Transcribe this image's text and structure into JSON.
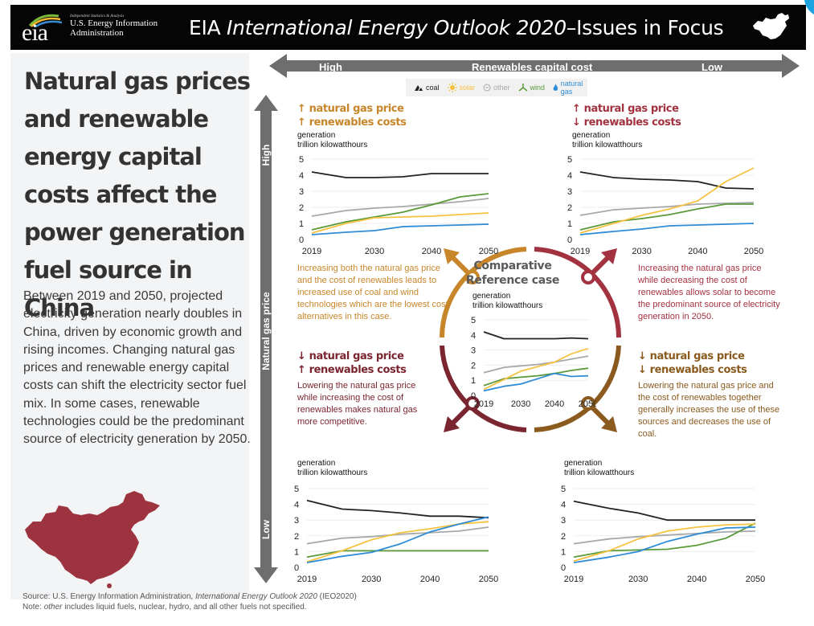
{
  "header": {
    "agency_tagline": "Independent Statistics & Analysis",
    "agency_name_line1": "U.S. Energy Information",
    "agency_name_line2": "Administration",
    "logo_text": "eia",
    "title_prefix": "EIA ",
    "title_italic": "International Energy Outlook 2020",
    "title_suffix": "–Issues in Focus"
  },
  "left_panel": {
    "headline": "Natural gas prices and renewable energy capital costs affect the power generation fuel source in China",
    "body": "Between 2019 and 2050, projected electricity generation nearly doubles in China, driven by economic growth and rising incomes. Changing natural gas prices and renewable energy capital costs can shift the electricity sector fuel mix. In some cases, renewable technologies could be the predominant source of electricity generation by 2050."
  },
  "axes": {
    "horizontal": {
      "title": "Renewables capital cost",
      "left": "High",
      "right": "Low"
    },
    "vertical": {
      "title": "Natural gas price",
      "top": "High",
      "bottom": "Low"
    }
  },
  "legend": [
    {
      "label": "coal",
      "color": "#222222",
      "icon": "coal-icon"
    },
    {
      "label": "solar",
      "color": "#f5c242",
      "icon": "sun-icon"
    },
    {
      "label": "other",
      "color": "#a8a8a8",
      "icon": "circle-icon"
    },
    {
      "label": "wind",
      "color": "#5a9a3a",
      "icon": "wind-turbine-icon"
    },
    {
      "label": "natural gas",
      "color": "#2e8bd6",
      "icon": "flame-icon"
    }
  ],
  "colors": {
    "orange": "#c8862a",
    "red": "#a33240",
    "darkred": "#7a2530",
    "brown": "#8a5a1e",
    "arrow_gray": "#6e6e6e"
  },
  "unit_label_1": "generation",
  "unit_label_2": "trillion kilowatthours",
  "cases": {
    "top_left": {
      "line1": "↑ natural gas price",
      "line2": "↑ renewables costs",
      "description": "Increasing both the natural gas price and the cost of renewables leads to increased use of coal and wind technologies which are the lowest cost alternatives in this case."
    },
    "top_right": {
      "line1": "↑ natural gas price",
      "line2": "↓ renewables costs",
      "description": "Increasing the natural gas price while decreasing the cost of renewables allows solar to become the predominant source of electricity generation in 2050."
    },
    "bottom_left": {
      "line1": "↓ natural gas price",
      "line2": "↑ renewables costs",
      "description": "Lowering the natural gas price while increasing the cost of renewables makes natural gas more competitive."
    },
    "bottom_right": {
      "line1": "↓ natural gas price",
      "line2": "↓ renewables costs",
      "description": "Lowering the natural gas price and the cost of renewables together generally increases the use of these sources and decreases the use of coal."
    },
    "reference": {
      "title_line1": "Comparative",
      "title_line2": "Reference case"
    }
  },
  "footnote": {
    "source_prefix": "Source: U.S. Energy Information Administration, ",
    "source_italic": "International Energy Outlook 2020",
    "source_suffix": " (IEO2020)",
    "note_prefix": "Note: ",
    "note_italic": "other",
    "note_suffix": " includes liquid fuels, nuclear, hydro, and all other fuels not specified."
  },
  "chart_data": [
    {
      "id": "top_left",
      "type": "line",
      "title": "↑ natural gas price, ↑ renewables costs",
      "ylabel": "generation trillion kilowatthours",
      "x": [
        2019,
        2025,
        2030,
        2035,
        2040,
        2045,
        2050
      ],
      "xticks": [
        2019,
        2030,
        2040,
        2050
      ],
      "yticks": [
        0,
        1,
        2,
        3,
        4,
        5
      ],
      "ylim": [
        0,
        5
      ],
      "series": [
        {
          "name": "coal",
          "values": [
            4.2,
            3.85,
            3.85,
            3.9,
            4.1,
            4.1,
            4.1
          ]
        },
        {
          "name": "other",
          "values": [
            1.45,
            1.8,
            1.95,
            2.05,
            2.2,
            2.35,
            2.55
          ]
        },
        {
          "name": "wind",
          "values": [
            0.6,
            1.1,
            1.4,
            1.7,
            2.15,
            2.65,
            2.85
          ]
        },
        {
          "name": "solar",
          "values": [
            0.4,
            1.0,
            1.35,
            1.4,
            1.45,
            1.55,
            1.65
          ]
        },
        {
          "name": "natural gas",
          "values": [
            0.3,
            0.45,
            0.55,
            0.8,
            0.85,
            0.9,
            0.95
          ]
        }
      ]
    },
    {
      "id": "top_right",
      "type": "line",
      "title": "↑ natural gas price, ↓ renewables costs",
      "ylabel": "generation trillion kilowatthours",
      "x": [
        2019,
        2025,
        2030,
        2035,
        2040,
        2045,
        2050
      ],
      "xticks": [
        2019,
        2030,
        2040,
        2050
      ],
      "yticks": [
        0,
        1,
        2,
        3,
        4,
        5
      ],
      "ylim": [
        0,
        5
      ],
      "series": [
        {
          "name": "coal",
          "values": [
            4.2,
            3.85,
            3.75,
            3.7,
            3.6,
            3.2,
            3.15
          ]
        },
        {
          "name": "other",
          "values": [
            1.5,
            1.85,
            1.95,
            2.05,
            2.2,
            2.25,
            2.3
          ]
        },
        {
          "name": "wind",
          "values": [
            0.6,
            1.1,
            1.3,
            1.55,
            1.9,
            2.2,
            2.2
          ]
        },
        {
          "name": "solar",
          "values": [
            0.4,
            1.0,
            1.5,
            1.9,
            2.4,
            3.6,
            4.45
          ]
        },
        {
          "name": "natural gas",
          "values": [
            0.3,
            0.5,
            0.65,
            0.85,
            0.9,
            0.95,
            1.0
          ]
        }
      ]
    },
    {
      "id": "reference",
      "type": "line",
      "title": "Comparative Reference case",
      "ylabel": "generation trillion kilowatthours",
      "x": [
        2019,
        2025,
        2030,
        2035,
        2040,
        2045,
        2050
      ],
      "xticks": [
        2019,
        2030,
        2040,
        2050
      ],
      "yticks": [
        0,
        1,
        2,
        3,
        4,
        5
      ],
      "ylim": [
        0,
        5
      ],
      "series": [
        {
          "name": "coal",
          "values": [
            4.2,
            3.75,
            3.75,
            3.75,
            3.75,
            3.8,
            3.75
          ]
        },
        {
          "name": "other",
          "values": [
            1.5,
            1.85,
            1.95,
            2.05,
            2.2,
            2.4,
            2.6
          ]
        },
        {
          "name": "wind",
          "values": [
            0.65,
            1.1,
            1.2,
            1.3,
            1.45,
            1.65,
            1.8
          ]
        },
        {
          "name": "solar",
          "values": [
            0.4,
            1.05,
            1.6,
            1.9,
            2.2,
            2.75,
            3.1
          ]
        },
        {
          "name": "natural gas",
          "values": [
            0.3,
            0.6,
            0.75,
            1.1,
            1.45,
            1.25,
            1.3
          ]
        }
      ]
    },
    {
      "id": "bottom_left",
      "type": "line",
      "title": "↓ natural gas price, ↑ renewables costs",
      "ylabel": "generation trillion kilowatthours",
      "x": [
        2019,
        2025,
        2030,
        2035,
        2040,
        2045,
        2050
      ],
      "xticks": [
        2019,
        2030,
        2040,
        2050
      ],
      "yticks": [
        0,
        1,
        2,
        3,
        4,
        5
      ],
      "ylim": [
        0,
        5
      ],
      "series": [
        {
          "name": "coal",
          "values": [
            4.25,
            3.7,
            3.6,
            3.45,
            3.25,
            3.25,
            3.15
          ]
        },
        {
          "name": "other",
          "values": [
            1.5,
            1.85,
            1.95,
            2.1,
            2.2,
            2.3,
            2.55
          ]
        },
        {
          "name": "wind",
          "values": [
            0.65,
            1.05,
            1.05,
            1.05,
            1.05,
            1.05,
            1.05
          ]
        },
        {
          "name": "solar",
          "values": [
            0.35,
            1.05,
            1.75,
            2.2,
            2.45,
            2.75,
            2.9
          ]
        },
        {
          "name": "natural gas",
          "values": [
            0.3,
            0.7,
            0.95,
            1.5,
            2.25,
            2.75,
            3.2
          ]
        }
      ]
    },
    {
      "id": "bottom_right",
      "type": "line",
      "title": "↓ natural gas price, ↓ renewables costs",
      "ylabel": "generation trillion kilowatthours",
      "x": [
        2019,
        2025,
        2030,
        2035,
        2040,
        2045,
        2050
      ],
      "xticks": [
        2019,
        2030,
        2040,
        2050
      ],
      "yticks": [
        0,
        1,
        2,
        3,
        4,
        5
      ],
      "ylim": [
        0,
        5
      ],
      "series": [
        {
          "name": "coal",
          "values": [
            4.2,
            3.75,
            3.45,
            3.0,
            3.0,
            3.0,
            3.0
          ]
        },
        {
          "name": "other",
          "values": [
            1.5,
            1.8,
            1.95,
            2.05,
            2.15,
            2.25,
            2.3
          ]
        },
        {
          "name": "wind",
          "values": [
            0.65,
            1.05,
            1.1,
            1.15,
            1.4,
            1.85,
            2.8
          ]
        },
        {
          "name": "solar",
          "values": [
            0.4,
            1.05,
            1.8,
            2.3,
            2.55,
            2.7,
            2.75
          ]
        },
        {
          "name": "natural gas",
          "values": [
            0.3,
            0.65,
            1.0,
            1.65,
            2.1,
            2.5,
            2.55
          ]
        }
      ]
    }
  ]
}
